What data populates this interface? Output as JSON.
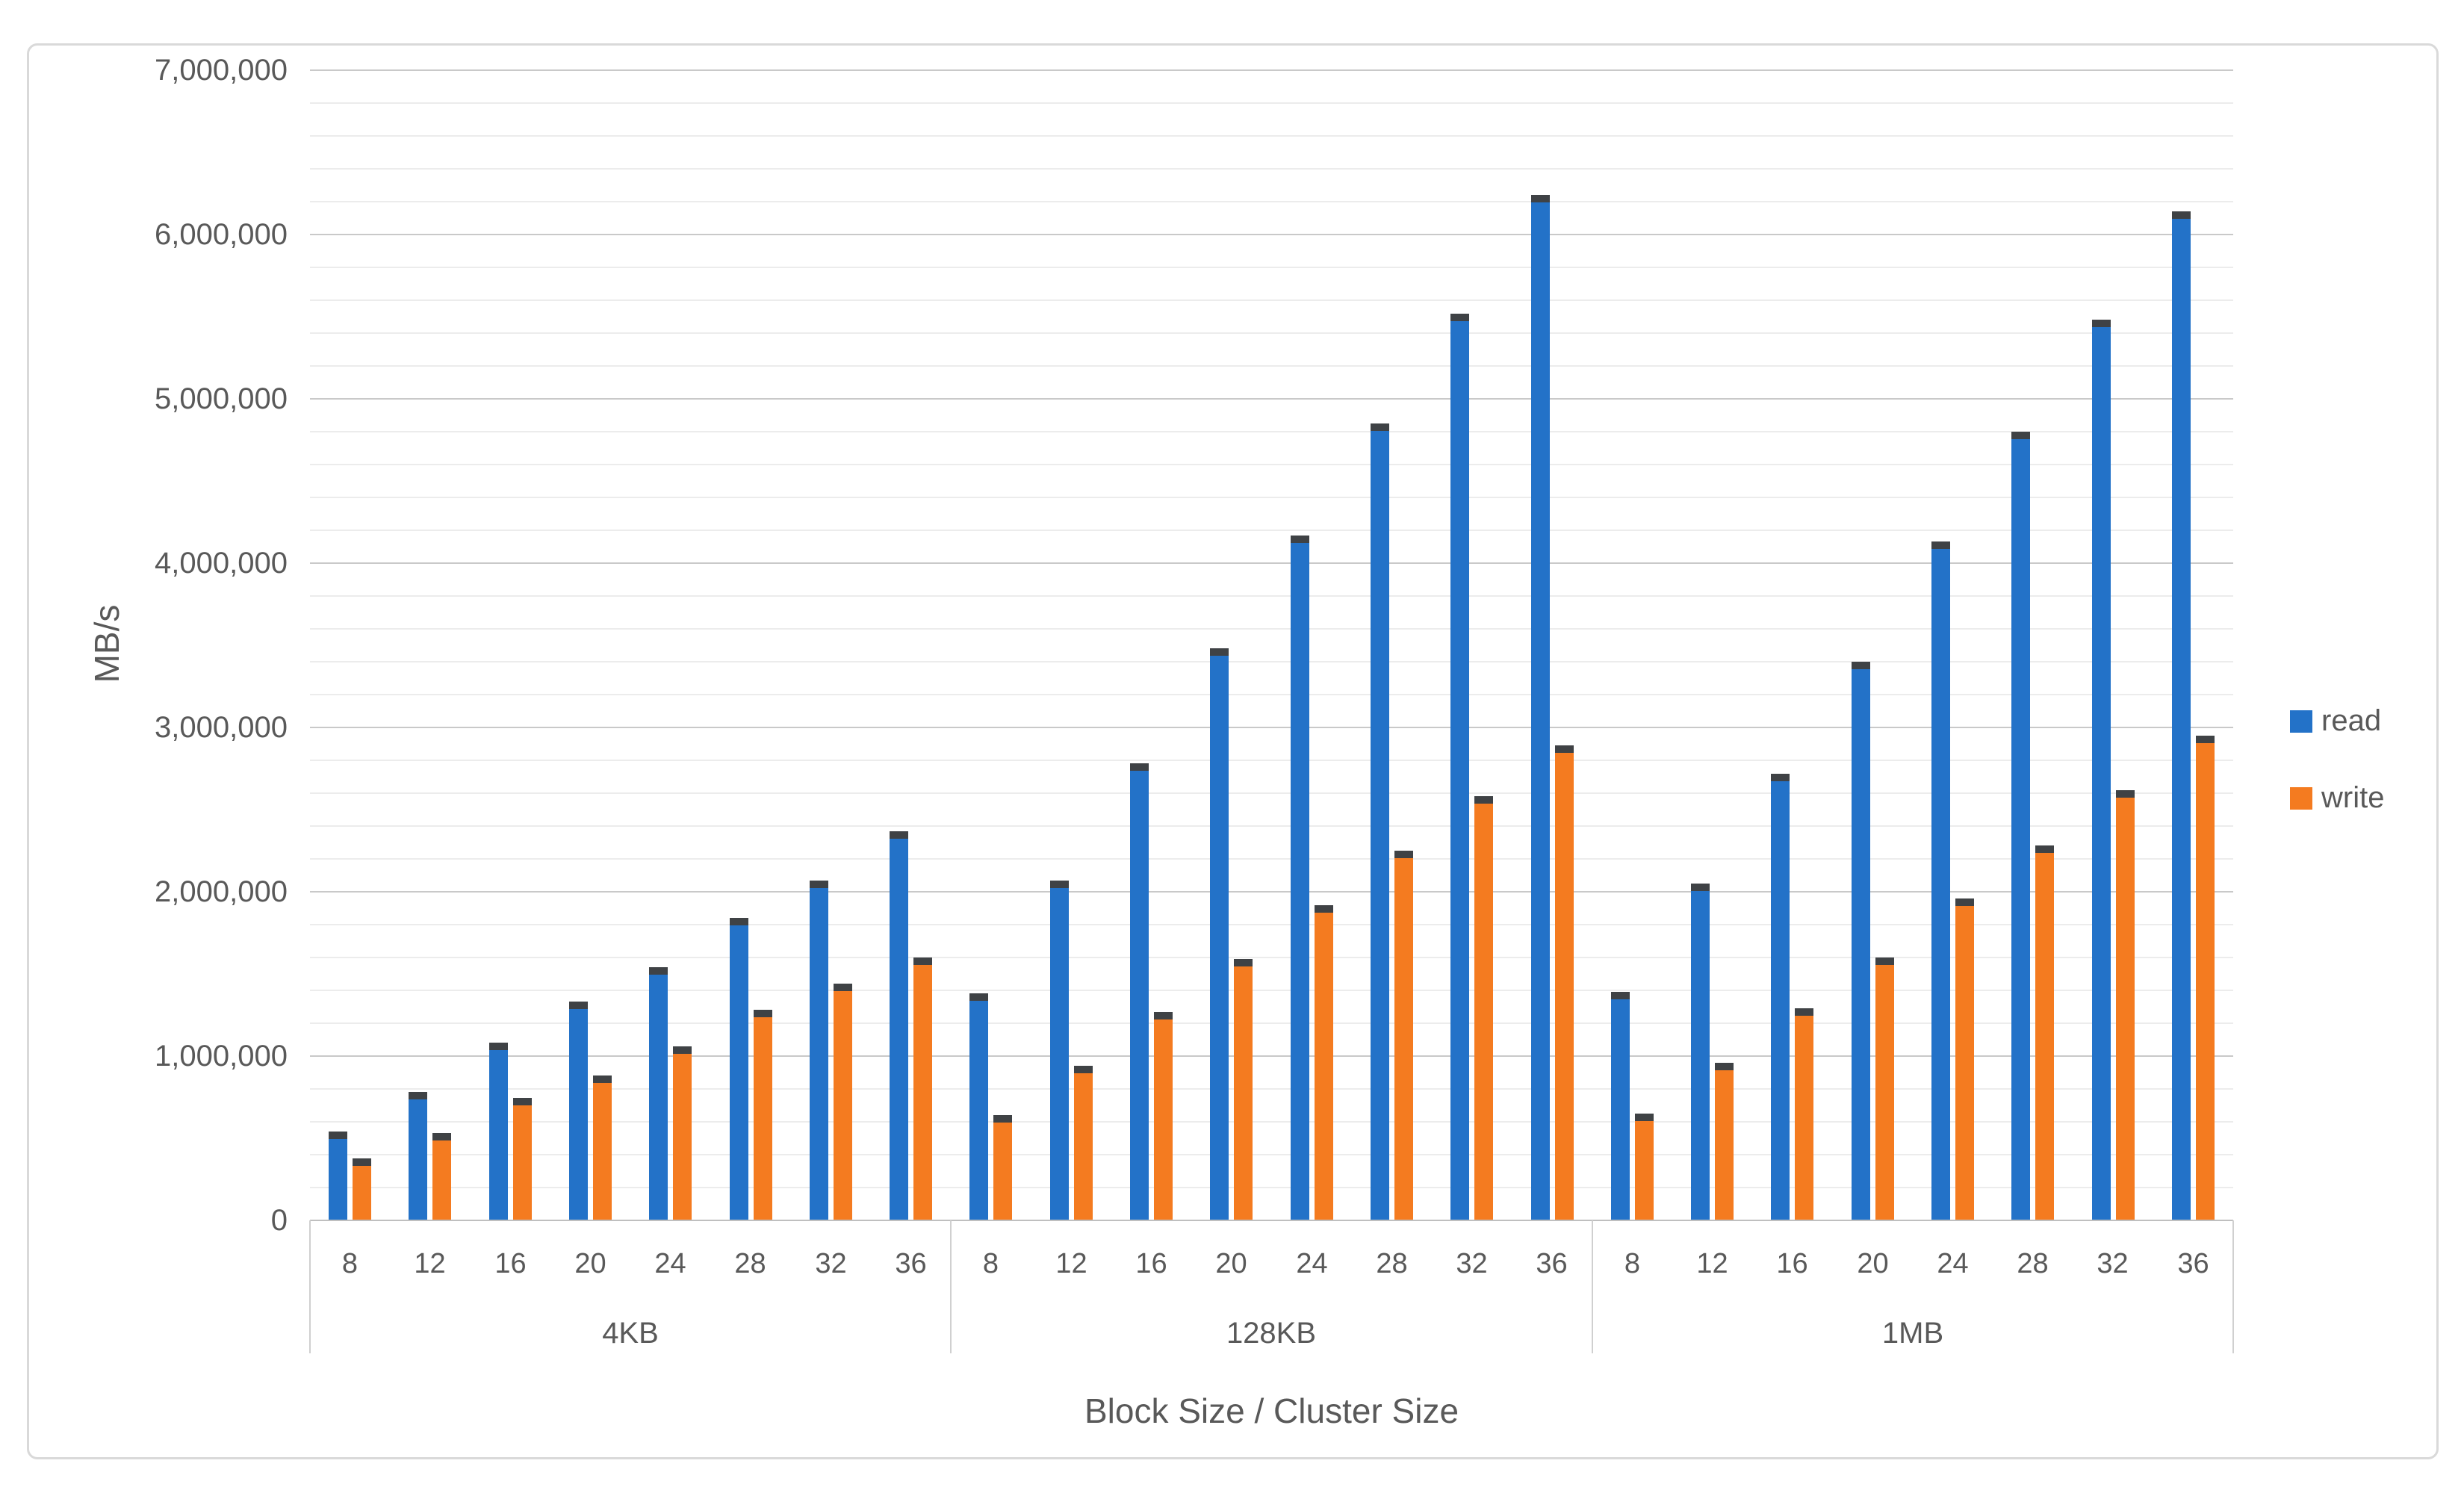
{
  "chart_data": {
    "type": "bar",
    "title": "",
    "ylabel": "MB/s",
    "xlabel": "Block Size / Cluster Size",
    "ylim": [
      0,
      7000000
    ],
    "y_major_tick": 1000000,
    "y_minor_tick": 200000,
    "y_tick_labels": [
      "0",
      "1,000,000",
      "2,000,000",
      "3,000,000",
      "4,000,000",
      "5,000,000",
      "6,000,000",
      "7,000,000"
    ],
    "grid": true,
    "legend_position": "right-middle",
    "categories_per_group": [
      "8",
      "12",
      "16",
      "20",
      "24",
      "28",
      "32",
      "36"
    ],
    "groups": [
      {
        "label": "4KB",
        "read": [
          540000,
          780000,
          1080000,
          1330000,
          1540000,
          1840000,
          2070000,
          2370000
        ],
        "write": [
          375000,
          530000,
          745000,
          880000,
          1060000,
          1280000,
          1440000,
          1600000
        ]
      },
      {
        "label": "128KB",
        "read": [
          1380000,
          2070000,
          2780000,
          3480000,
          4170000,
          4850000,
          5520000,
          6240000
        ],
        "write": [
          640000,
          940000,
          1270000,
          1590000,
          1920000,
          2250000,
          2580000,
          2890000
        ]
      },
      {
        "label": "1MB",
        "read": [
          1390000,
          2050000,
          2720000,
          3400000,
          4130000,
          4800000,
          5480000,
          6140000
        ],
        "write": [
          650000,
          960000,
          1290000,
          1600000,
          1960000,
          2280000,
          2620000,
          2950000
        ]
      }
    ],
    "series": [
      {
        "name": "read",
        "color": "#2372C8"
      },
      {
        "name": "write",
        "color": "#F47B20"
      }
    ],
    "bar_cap_color": "#3F4245",
    "colors": {
      "minor_gridline": "#ECECEC",
      "major_gridline": "#C9C9C9",
      "axis_line": "#BFBFBF",
      "text": "#595959",
      "chart_border": "#D9D9D9"
    }
  }
}
